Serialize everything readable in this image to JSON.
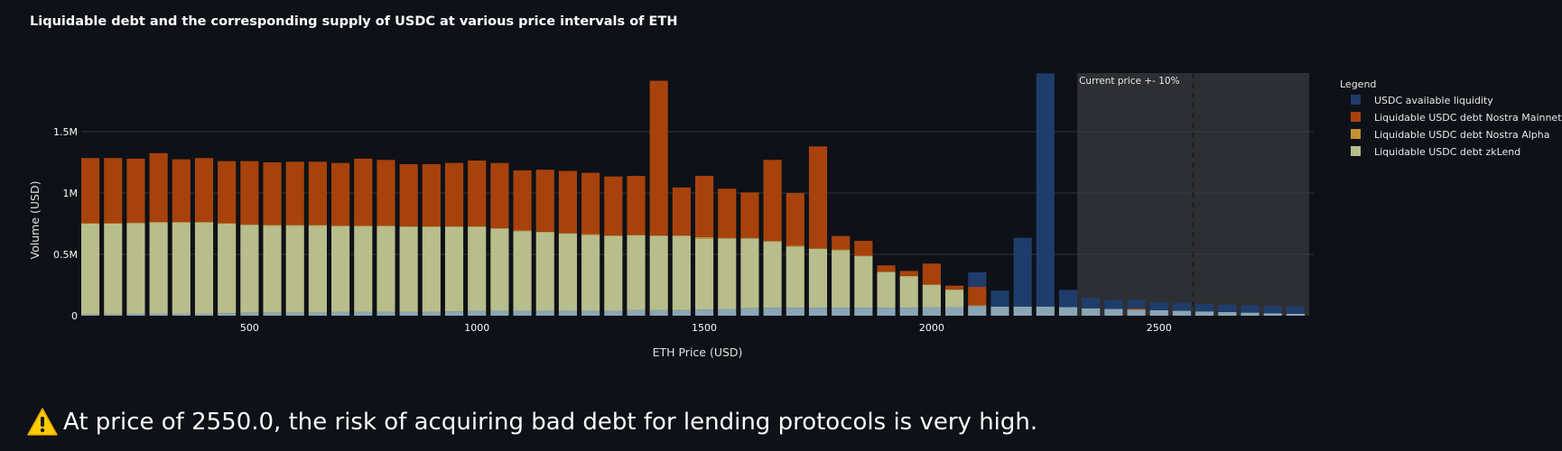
{
  "warning": {
    "icon": "warning-icon",
    "text": "At price of 2550.0, the risk of acquiring bad debt for lending protocols is very high."
  },
  "chart_data": {
    "type": "bar",
    "stacked": true,
    "title": "Liquidable debt and the corresponding supply of USDC at various price intervals of ETH",
    "xlabel": "ETH Price (USD)",
    "ylabel": "Volume (USD)",
    "xlim": [
      130,
      2840
    ],
    "ylim": [
      0,
      2000000
    ],
    "xticks": [
      500,
      1000,
      1500,
      2000,
      2500
    ],
    "yticks": [
      0,
      500000,
      1000000,
      1500000
    ],
    "ytick_labels": [
      "0",
      "0.5M",
      "1M",
      "1.5M"
    ],
    "x": [
      150,
      200,
      250,
      300,
      350,
      400,
      450,
      500,
      550,
      600,
      650,
      700,
      750,
      800,
      850,
      900,
      950,
      1000,
      1050,
      1100,
      1150,
      1200,
      1250,
      1300,
      1350,
      1400,
      1450,
      1500,
      1550,
      1600,
      1650,
      1700,
      1750,
      1800,
      1850,
      1900,
      1950,
      2000,
      2050,
      2100,
      2150,
      2200,
      2250,
      2300,
      2350,
      2400,
      2450,
      2500,
      2550,
      2600,
      2650,
      2700,
      2750,
      2800
    ],
    "series": [
      {
        "name": "USDC available liquidity",
        "color": "#1f3d6b",
        "values": [
          0,
          0,
          0,
          0,
          0,
          0,
          0,
          0,
          0,
          0,
          0,
          0,
          0,
          0,
          0,
          0,
          0,
          0,
          0,
          0,
          0,
          0,
          0,
          0,
          0,
          0,
          0,
          0,
          0,
          0,
          0,
          0,
          0,
          0,
          0,
          0,
          0,
          0,
          0,
          120000,
          130000,
          560000,
          1900000,
          140000,
          85000,
          75000,
          70000,
          65000,
          65000,
          60000,
          60000,
          60000,
          60000,
          60000
        ]
      },
      {
        "name": "Liquidable USDC debt Nostra Mainnet",
        "color": "#a8420d",
        "values": [
          530000,
          530000,
          520000,
          560000,
          510000,
          520000,
          505000,
          515000,
          510000,
          515000,
          515000,
          510000,
          545000,
          535000,
          505000,
          505000,
          515000,
          535000,
          530000,
          490000,
          505000,
          505000,
          500000,
          480000,
          480000,
          1260000,
          390000,
          500000,
          400000,
          370000,
          660000,
          430000,
          830000,
          110000,
          120000,
          50000,
          40000,
          170000,
          30000,
          150000,
          0,
          0,
          0,
          0,
          0,
          0,
          10000,
          0,
          0,
          0,
          0,
          0,
          0,
          0
        ]
      },
      {
        "name": "Liquidable USDC debt Nostra Alpha",
        "color": "#c4902f",
        "values": [
          5000,
          5000,
          5000,
          5000,
          5000,
          5000,
          5000,
          5000,
          5000,
          5000,
          5000,
          5000,
          5000,
          5000,
          5000,
          5000,
          5000,
          5000,
          5000,
          5000,
          5000,
          5000,
          5000,
          5000,
          5000,
          5000,
          5000,
          10000,
          5000,
          5000,
          5000,
          5000,
          5000,
          5000,
          5000,
          5000,
          5000,
          5000,
          5000,
          5000,
          0,
          0,
          0,
          0,
          0,
          0,
          0,
          0,
          0,
          0,
          0,
          0,
          0,
          0
        ]
      },
      {
        "name": "Liquidable USDC debt zkLend",
        "color": "#b8bd8c",
        "values": [
          740000,
          740000,
          740000,
          745000,
          745000,
          745000,
          730000,
          715000,
          710000,
          710000,
          710000,
          700000,
          700000,
          700000,
          695000,
          695000,
          690000,
          685000,
          670000,
          650000,
          640000,
          630000,
          620000,
          610000,
          610000,
          605000,
          605000,
          580000,
          575000,
          570000,
          540000,
          500000,
          480000,
          470000,
          420000,
          290000,
          255000,
          180000,
          140000,
          0,
          0,
          0,
          0,
          0,
          0,
          0,
          0,
          0,
          0,
          0,
          0,
          0,
          0,
          0
        ]
      },
      {
        "name": "",
        "color": "#8aa6b5",
        "values": [
          10000,
          10000,
          15000,
          15000,
          15000,
          15000,
          20000,
          25000,
          25000,
          25000,
          25000,
          30000,
          30000,
          30000,
          30000,
          30000,
          35000,
          40000,
          40000,
          40000,
          40000,
          40000,
          40000,
          40000,
          45000,
          45000,
          45000,
          50000,
          55000,
          60000,
          65000,
          65000,
          65000,
          65000,
          65000,
          65000,
          65000,
          70000,
          70000,
          80000,
          75000,
          75000,
          75000,
          70000,
          60000,
          55000,
          50000,
          45000,
          40000,
          35000,
          30000,
          25000,
          20000,
          15000
        ]
      }
    ],
    "legend": {
      "title": "Legend",
      "position": "right"
    },
    "annotation": {
      "text": "Current price +- 10%",
      "range": [
        2320,
        2830
      ],
      "center": 2575
    },
    "grid": true
  }
}
